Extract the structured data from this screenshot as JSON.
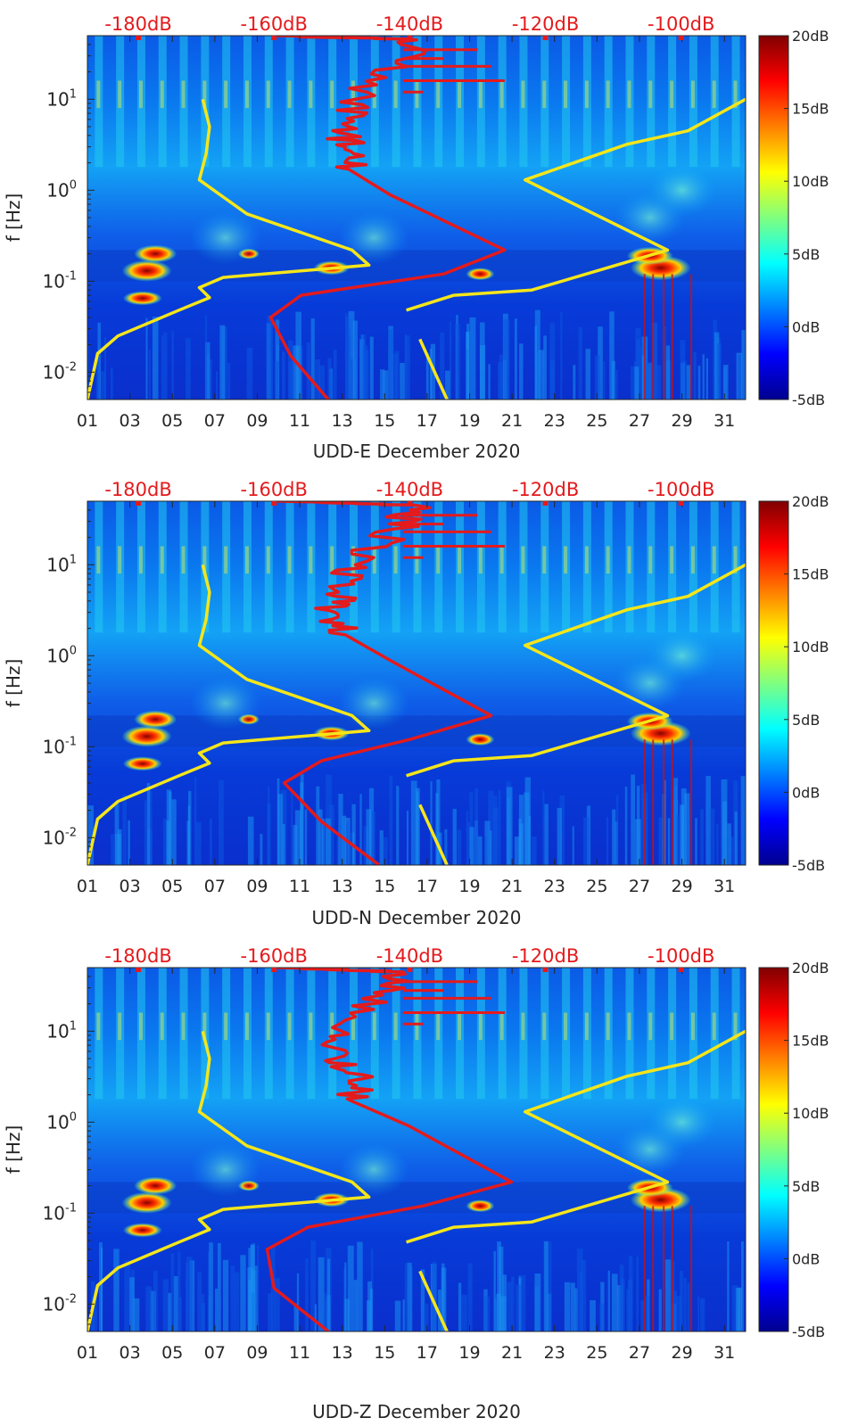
{
  "figure": {
    "colors": {
      "noise_model": "#f5e61a",
      "spectrum": "#e41a1c",
      "top_axis_text": "#e41a1c",
      "axis": "#262626"
    },
    "colorbar": {
      "colormap": "jet",
      "range_db": [
        -5,
        20
      ],
      "tick_labels": [
        "20dB",
        "15dB",
        "10dB",
        "5dB",
        "0dB",
        "-5dB"
      ]
    }
  },
  "chart_data": [
    {
      "type": "heatmap",
      "xlabel": "UDD-E December 2020",
      "ylabel": "f [Hz]",
      "x_ticks": [
        "01",
        "03",
        "05",
        "07",
        "09",
        "11",
        "13",
        "15",
        "17",
        "19",
        "21",
        "23",
        "25",
        "27",
        "29",
        "31"
      ],
      "y_ticks": [
        "10^-2",
        "10^-1",
        "10^0",
        "10^1"
      ],
      "xlim_days": [
        1,
        32
      ],
      "ylim_hz": [
        0.005,
        50
      ],
      "y_scale": "log",
      "top_axis": {
        "label_color": "red",
        "ticks": [
          "-180dB",
          "-160dB",
          "-140dB",
          "-120dB",
          "-100dB"
        ],
        "xlim_db": [
          -187.5,
          -90.5
        ]
      },
      "colorbar_range_db": [
        -5,
        20
      ],
      "series": [
        {
          "color": "yellow",
          "points_db_hz": [
            [
              -187.5,
              0.005
            ],
            [
              -186,
              0.016
            ],
            [
              -183,
              0.025
            ],
            [
              -174,
              0.048
            ],
            [
              -169.5,
              0.066
            ],
            [
              -171,
              0.085
            ],
            [
              -167.5,
              0.11
            ],
            [
              -146,
              0.15
            ],
            [
              -148.5,
              0.22
            ],
            [
              -164,
              0.55
            ],
            [
              -171,
              1.3
            ],
            [
              -170,
              2.5
            ],
            [
              -169.5,
              5
            ],
            [
              -170.5,
              10
            ],
            [
              -140.5,
              0.048
            ],
            [
              -133.5,
              0.07
            ],
            [
              -122,
              0.08
            ],
            [
              -102,
              0.22
            ],
            [
              -123,
              1.3
            ],
            [
              -108,
              3.2
            ],
            [
              -99,
              4.5
            ],
            [
              -90.5,
              10
            ],
            [
              -134.5,
              0.005
            ],
            [
              -138.5,
              0.023
            ]
          ]
        },
        {
          "color": "red",
          "points_db_hz": [
            [
              -159.5,
              50
            ],
            [
              -139,
              45
            ],
            [
              -142,
              25
            ],
            [
              -148,
              10
            ],
            [
              -149,
              5
            ],
            [
              -149.5,
              3
            ],
            [
              -149,
              1.7
            ],
            [
              -143,
              0.9
            ],
            [
              -126,
              0.22
            ],
            [
              -135,
              0.12
            ],
            [
              -156,
              0.07
            ],
            [
              -160.5,
              0.04
            ],
            [
              -157.5,
              0.015
            ],
            [
              -152,
              0.005
            ]
          ]
        }
      ]
    },
    {
      "type": "heatmap",
      "xlabel": "UDD-N December 2020",
      "ylabel": "f [Hz]",
      "x_ticks": [
        "01",
        "03",
        "05",
        "07",
        "09",
        "11",
        "13",
        "15",
        "17",
        "19",
        "21",
        "23",
        "25",
        "27",
        "29",
        "31"
      ],
      "y_ticks": [
        "10^-2",
        "10^-1",
        "10^0",
        "10^1"
      ],
      "xlim_days": [
        1,
        32
      ],
      "ylim_hz": [
        0.005,
        50
      ],
      "y_scale": "log",
      "top_axis": {
        "label_color": "red",
        "ticks": [
          "-180dB",
          "-160dB",
          "-140dB",
          "-120dB",
          "-100dB"
        ],
        "xlim_db": [
          -187.5,
          -90.5
        ]
      },
      "colorbar_range_db": [
        -5,
        20
      ],
      "series": [
        {
          "color": "yellow",
          "points_db_hz": [
            [
              -187.5,
              0.005
            ],
            [
              -186,
              0.016
            ],
            [
              -183,
              0.025
            ],
            [
              -174,
              0.048
            ],
            [
              -169.5,
              0.066
            ],
            [
              -171,
              0.085
            ],
            [
              -167.5,
              0.11
            ],
            [
              -146,
              0.15
            ],
            [
              -148.5,
              0.22
            ],
            [
              -164,
              0.55
            ],
            [
              -171,
              1.3
            ],
            [
              -170,
              2.5
            ],
            [
              -169.5,
              5
            ],
            [
              -170.5,
              10
            ],
            [
              -140.5,
              0.048
            ],
            [
              -133.5,
              0.07
            ],
            [
              -122,
              0.08
            ],
            [
              -102,
              0.22
            ],
            [
              -123,
              1.3
            ],
            [
              -108,
              3.2
            ],
            [
              -99,
              4.5
            ],
            [
              -90.5,
              10
            ],
            [
              -134.5,
              0.005
            ],
            [
              -138.5,
              0.023
            ]
          ]
        },
        {
          "color": "red",
          "points_db_hz": [
            [
              -159.5,
              50
            ],
            [
              -139,
              45
            ],
            [
              -142,
              25
            ],
            [
              -148,
              10
            ],
            [
              -150.5,
              5
            ],
            [
              -151,
              3
            ],
            [
              -149.5,
              1.7
            ],
            [
              -143,
              0.9
            ],
            [
              -128,
              0.22
            ],
            [
              -140,
              0.12
            ],
            [
              -153,
              0.07
            ],
            [
              -158.5,
              0.04
            ],
            [
              -153,
              0.015
            ],
            [
              -144.5,
              0.005
            ]
          ]
        }
      ]
    },
    {
      "type": "heatmap",
      "xlabel": "UDD-Z December 2020",
      "ylabel": "f [Hz]",
      "x_ticks": [
        "01",
        "03",
        "05",
        "07",
        "09",
        "11",
        "13",
        "15",
        "17",
        "19",
        "21",
        "23",
        "25",
        "27",
        "29",
        "31"
      ],
      "y_ticks": [
        "10^-2",
        "10^-1",
        "10^0",
        "10^1"
      ],
      "xlim_days": [
        1,
        32
      ],
      "ylim_hz": [
        0.005,
        50
      ],
      "y_scale": "log",
      "top_axis": {
        "label_color": "red",
        "ticks": [
          "-180dB",
          "-160dB",
          "-140dB",
          "-120dB",
          "-100dB"
        ],
        "xlim_db": [
          -187.5,
          -90.5
        ]
      },
      "colorbar_range_db": [
        -5,
        20
      ],
      "series": [
        {
          "color": "yellow",
          "points_db_hz": [
            [
              -187.5,
              0.005
            ],
            [
              -186,
              0.016
            ],
            [
              -183,
              0.025
            ],
            [
              -174,
              0.048
            ],
            [
              -169.5,
              0.066
            ],
            [
              -171,
              0.085
            ],
            [
              -167.5,
              0.11
            ],
            [
              -146,
              0.15
            ],
            [
              -148.5,
              0.22
            ],
            [
              -164,
              0.55
            ],
            [
              -171,
              1.3
            ],
            [
              -170,
              2.5
            ],
            [
              -169.5,
              5
            ],
            [
              -170.5,
              10
            ],
            [
              -140.5,
              0.048
            ],
            [
              -133.5,
              0.07
            ],
            [
              -122,
              0.08
            ],
            [
              -102,
              0.22
            ],
            [
              -123,
              1.3
            ],
            [
              -108,
              3.2
            ],
            [
              -99,
              4.5
            ],
            [
              -90.5,
              10
            ],
            [
              -134.5,
              0.005
            ],
            [
              -138.5,
              0.023
            ]
          ]
        },
        {
          "color": "red",
          "points_db_hz": [
            [
              -159.5,
              50
            ],
            [
              -141,
              45
            ],
            [
              -144,
              25
            ],
            [
              -150,
              10
            ],
            [
              -151,
              5
            ],
            [
              -147,
              3
            ],
            [
              -148.5,
              1.7
            ],
            [
              -140,
              0.9
            ],
            [
              -125,
              0.22
            ],
            [
              -138,
              0.12
            ],
            [
              -155,
              0.07
            ],
            [
              -161,
              0.04
            ],
            [
              -160,
              0.015
            ],
            [
              -152,
              0.005
            ]
          ]
        }
      ]
    }
  ]
}
